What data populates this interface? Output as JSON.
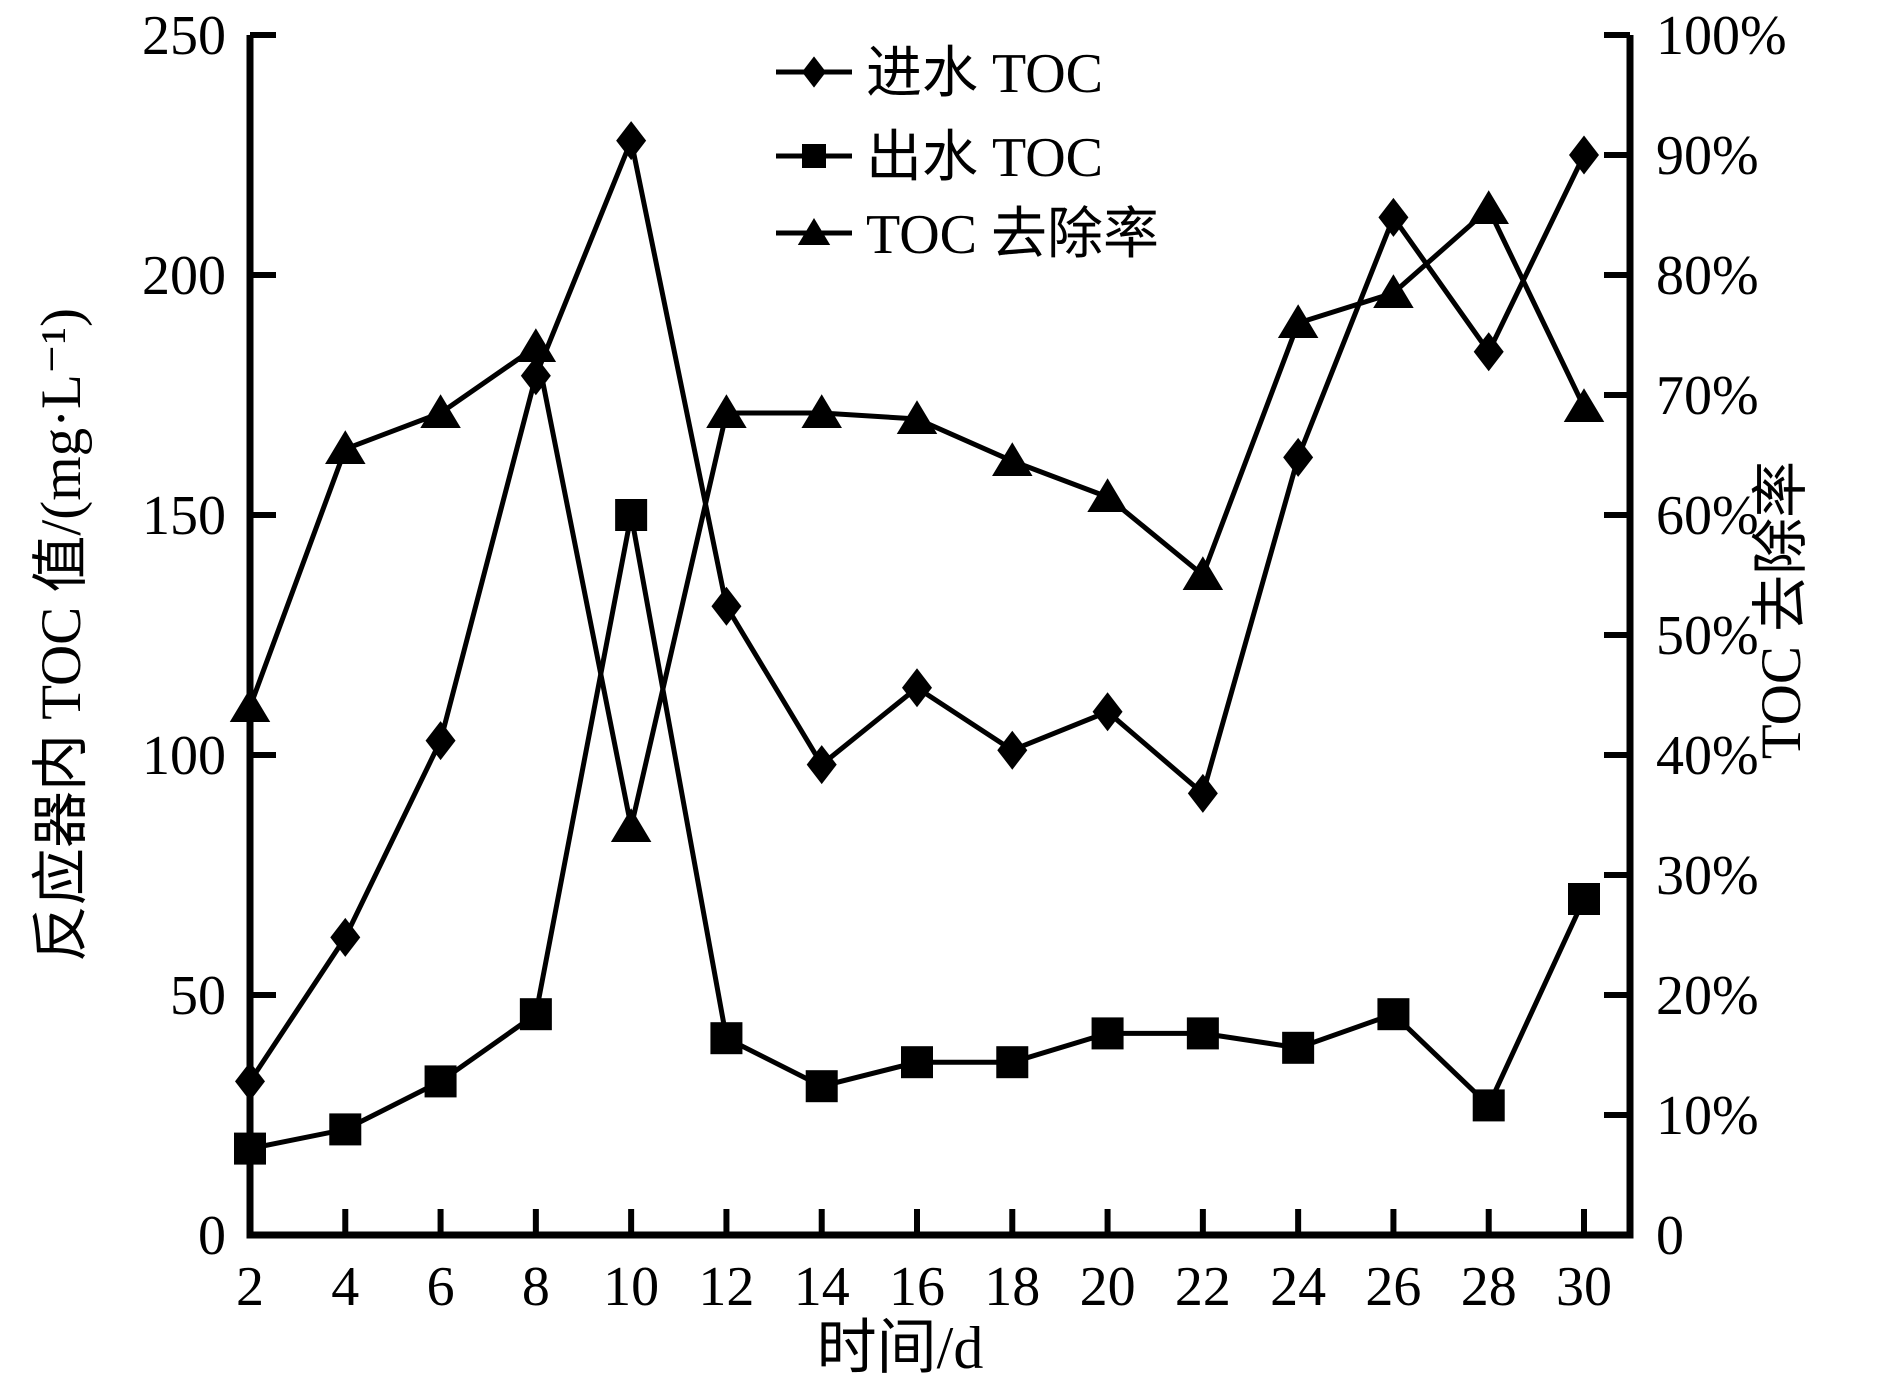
{
  "colors": {
    "foreground": "#000000",
    "background": "#ffffff"
  },
  "chart_data": {
    "type": "line",
    "title": "",
    "xlabel": "时间/d",
    "ylabel_left": "反应器内 TOC 值/(mg·L⁻¹)",
    "ylabel_right": "TOC 去除率",
    "x": [
      2,
      4,
      6,
      8,
      10,
      12,
      14,
      16,
      18,
      20,
      22,
      24,
      26,
      28,
      30
    ],
    "x_tick_labels": [
      "2",
      "4",
      "6",
      "8",
      "10",
      "12",
      "14",
      "16",
      "18",
      "20",
      "22",
      "24",
      "26",
      "28",
      "30"
    ],
    "xlim": [
      2,
      31
    ],
    "ylim_left": [
      0,
      250
    ],
    "ylim_right": [
      0,
      100
    ],
    "y_ticks_left": [
      0,
      50,
      100,
      150,
      200,
      250
    ],
    "y_tick_labels_left": [
      "0",
      "50",
      "100",
      "150",
      "200",
      "250"
    ],
    "y_ticks_right": [
      0,
      10,
      20,
      30,
      40,
      50,
      60,
      70,
      80,
      90,
      100
    ],
    "y_tick_labels_right": [
      "0",
      "10%",
      "20%",
      "30%",
      "40%",
      "50%",
      "60%",
      "70%",
      "80%",
      "90%",
      "100%"
    ],
    "grid": false,
    "legend_position": "top-center-inside",
    "series": [
      {
        "name": "进水 TOC",
        "axis": "left",
        "marker": "diamond",
        "unit": "mg·L⁻¹",
        "values": [
          32,
          62,
          103,
          179,
          228,
          131,
          98,
          114,
          101,
          109,
          92,
          162,
          212,
          184,
          225
        ]
      },
      {
        "name": "出水 TOC",
        "axis": "left",
        "marker": "square",
        "unit": "mg·L⁻¹",
        "values": [
          18,
          22,
          32,
          46,
          150,
          41,
          31,
          36,
          36,
          42,
          42,
          39,
          46,
          27,
          70
        ]
      },
      {
        "name": "TOC 去除率",
        "axis": "right",
        "marker": "triangle",
        "unit": "%",
        "values": [
          44,
          65.5,
          68.5,
          74,
          34,
          68.5,
          68.5,
          68,
          64.5,
          61.5,
          55,
          76,
          78.5,
          85.5,
          69
        ]
      }
    ]
  }
}
